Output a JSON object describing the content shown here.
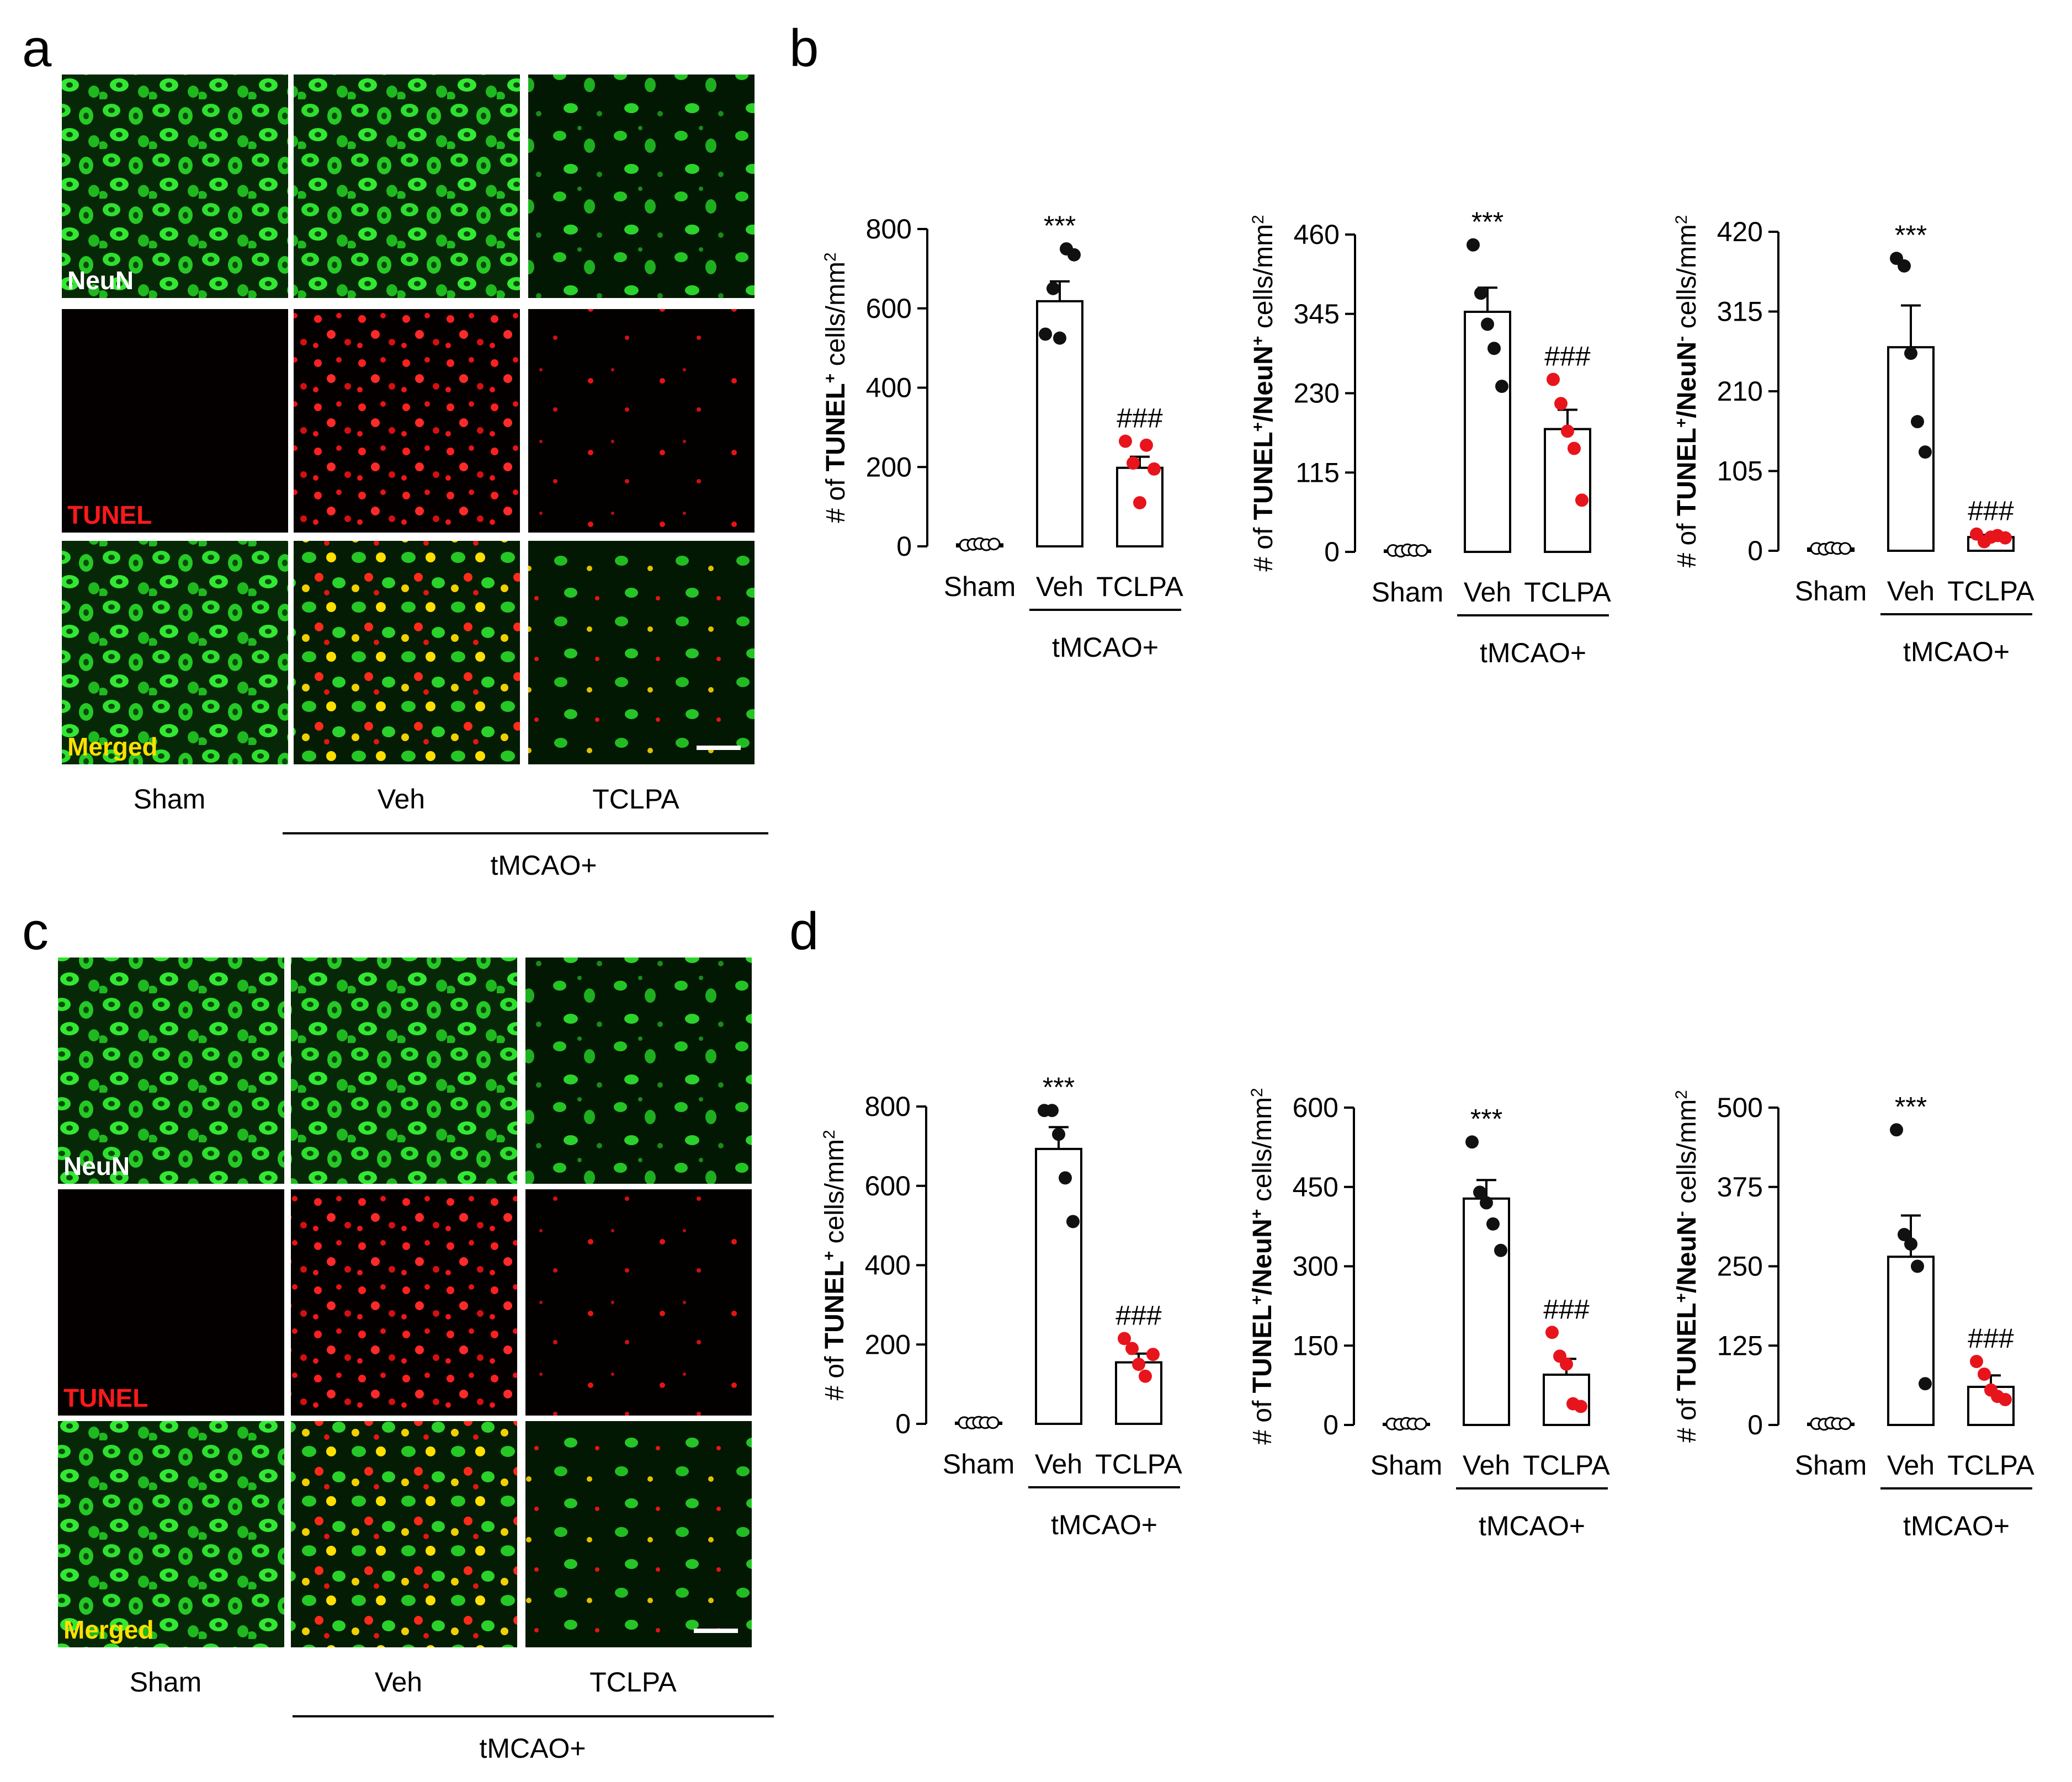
{
  "figure": {
    "panel_labels": {
      "a": "a",
      "b": "b",
      "c": "c",
      "d": "d"
    },
    "micrograph_panels": [
      {
        "id": "a",
        "channel_labels": [
          "NeuN",
          "TUNEL",
          "Merged"
        ],
        "column_labels": [
          "Sham",
          "Veh",
          "TCLPA"
        ],
        "group_label": "tMCAO+"
      },
      {
        "id": "c",
        "channel_labels": [
          "NeuN",
          "TUNEL",
          "Merged"
        ],
        "column_labels": [
          "Sham",
          "Veh",
          "TCLPA"
        ],
        "group_label": "tMCAO+"
      }
    ],
    "colors": {
      "neun_green": "#22d42a",
      "tunel_red": "#ff1a1a",
      "merged_yellow": "#ffe000",
      "treatment_point": "#e8141c",
      "control_point": "#111111"
    }
  },
  "chart_data": [
    {
      "type": "bar",
      "panel": "b",
      "categories": [
        "Sham",
        "Veh",
        "TCLPA"
      ],
      "group_label": "tMCAO+",
      "ylabel": {
        "prefix": "# of ",
        "b1": "TUNEL",
        "s1": "+",
        "b2": "",
        "s2": "",
        "suffix": " cells/mm",
        "sup": "2"
      },
      "ylim": [
        0,
        800
      ],
      "yticks": [
        0,
        200,
        400,
        600,
        800
      ],
      "values": [
        5,
        618,
        198
      ],
      "errors": [
        3,
        50,
        28
      ],
      "points": [
        [
          3,
          5,
          7,
          4,
          6
        ],
        [
          535,
          650,
          525,
          750,
          735
        ],
        [
          265,
          210,
          110,
          255,
          195
        ]
      ],
      "annotations": [
        "",
        "***",
        "###"
      ]
    },
    {
      "type": "bar",
      "panel": "b",
      "categories": [
        "Sham",
        "Veh",
        "TCLPA"
      ],
      "group_label": "tMCAO+",
      "ylabel": {
        "prefix": "# of ",
        "b1": "TUNEL",
        "s1": "+",
        "b2": "/NeuN",
        "s2": "+",
        "suffix": " cells/mm",
        "sup": "2"
      },
      "ylim": [
        0,
        460
      ],
      "yticks": [
        0,
        115,
        230,
        345,
        460
      ],
      "values": [
        2,
        348,
        178
      ],
      "errors": [
        2,
        35,
        28
      ],
      "points": [
        [
          2,
          1,
          3,
          2,
          2
        ],
        [
          445,
          375,
          330,
          295,
          240
        ],
        [
          250,
          215,
          175,
          150,
          75
        ]
      ],
      "annotations": [
        "",
        "***",
        "###"
      ]
    },
    {
      "type": "bar",
      "panel": "b",
      "categories": [
        "Sham",
        "Veh",
        "TCLPA"
      ],
      "group_label": "tMCAO+",
      "ylabel": {
        "prefix": "# of ",
        "b1": "TUNEL",
        "s1": "+",
        "b2": "/NeuN",
        "s2": "-",
        "suffix": " cells/mm",
        "sup": "2"
      },
      "ylim": [
        0,
        420
      ],
      "yticks": [
        0,
        105,
        210,
        315,
        420
      ],
      "values": [
        3,
        268,
        18
      ],
      "errors": [
        2,
        55,
        3
      ],
      "points": [
        [
          3,
          2,
          4,
          3,
          3
        ],
        [
          385,
          375,
          260,
          170,
          130
        ],
        [
          22,
          12,
          18,
          20,
          17
        ]
      ],
      "annotations": [
        "",
        "***",
        "###"
      ]
    },
    {
      "type": "bar",
      "panel": "d",
      "categories": [
        "Sham",
        "Veh",
        "TCLPA"
      ],
      "group_label": "tMCAO+",
      "ylabel": {
        "prefix": "# of ",
        "b1": "TUNEL",
        "s1": "+",
        "b2": "",
        "s2": "",
        "suffix": " cells/mm",
        "sup": "2"
      },
      "ylim": [
        0,
        800
      ],
      "yticks": [
        0,
        200,
        400,
        600,
        800
      ],
      "values": [
        3,
        693,
        155
      ],
      "errors": [
        2,
        55,
        22
      ],
      "points": [
        [
          3,
          2,
          4,
          3,
          3
        ],
        [
          790,
          790,
          730,
          620,
          510
        ],
        [
          215,
          190,
          150,
          120,
          175
        ]
      ],
      "annotations": [
        "",
        "***",
        "###"
      ]
    },
    {
      "type": "bar",
      "panel": "d",
      "categories": [
        "Sham",
        "Veh",
        "TCLPA"
      ],
      "group_label": "tMCAO+",
      "ylabel": {
        "prefix": "# of ",
        "b1": "TUNEL",
        "s1": "+",
        "b2": "/NeuN",
        "s2": "+",
        "suffix": " cells/mm",
        "sup": "2"
      },
      "ylim": [
        0,
        600
      ],
      "yticks": [
        0,
        150,
        300,
        450,
        600
      ],
      "values": [
        2,
        428,
        95
      ],
      "errors": [
        2,
        35,
        30
      ],
      "points": [
        [
          2,
          1,
          3,
          2,
          2
        ],
        [
          535,
          440,
          420,
          380,
          330
        ],
        [
          175,
          130,
          115,
          40,
          35
        ]
      ],
      "annotations": [
        "",
        "***",
        "###"
      ]
    },
    {
      "type": "bar",
      "panel": "d",
      "categories": [
        "Sham",
        "Veh",
        "TCLPA"
      ],
      "group_label": "tMCAO+",
      "ylabel": {
        "prefix": "# of ",
        "b1": "TUNEL",
        "s1": "+",
        "b2": "/NeuN",
        "s2": "-",
        "suffix": " cells/mm",
        "sup": "2"
      },
      "ylim": [
        0,
        500
      ],
      "yticks": [
        0,
        125,
        250,
        375,
        500
      ],
      "values": [
        2,
        265,
        60
      ],
      "errors": [
        2,
        65,
        18
      ],
      "points": [
        [
          2,
          1,
          3,
          2,
          2
        ],
        [
          465,
          300,
          285,
          250,
          65
        ],
        [
          100,
          80,
          55,
          45,
          40
        ]
      ],
      "annotations": [
        "",
        "***",
        "###"
      ]
    }
  ]
}
